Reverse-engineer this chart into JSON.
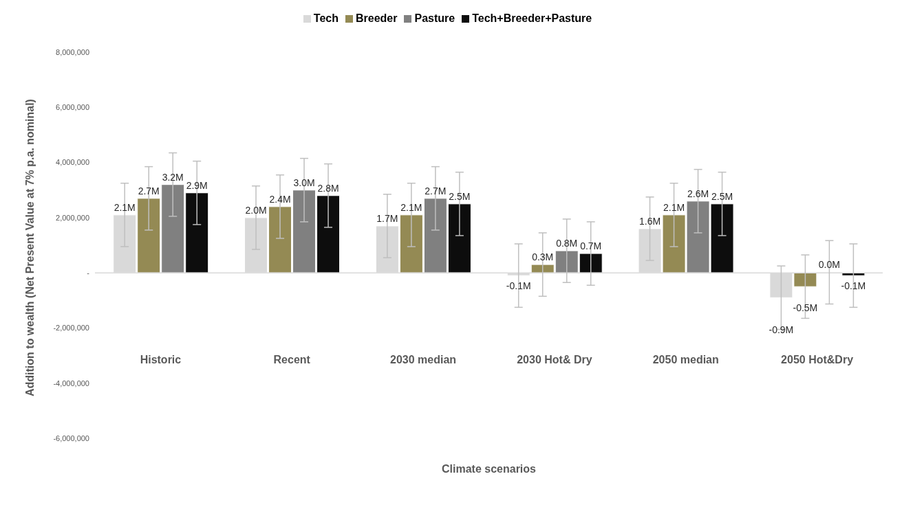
{
  "chart_data": {
    "type": "bar",
    "xlabel": "Climate scenarios",
    "ylabel": "Addition to wealth (Net Present Value at 7% p.a. nominal)",
    "categories": [
      "Historic",
      "Recent",
      "2030 median",
      "2030 Hot& Dry",
      "2050 median",
      "2050 Hot&Dry"
    ],
    "series": [
      {
        "name": "Tech",
        "color": "#d9d9d9",
        "values": [
          2100000,
          2000000,
          1700000,
          -100000,
          1600000,
          -900000
        ],
        "errors": [
          1150000,
          1150000,
          1150000,
          1150000,
          1150000,
          1150000
        ],
        "value_labels": [
          "2.1M",
          "2.0M",
          "1.7M",
          "-0.1M",
          "1.6M",
          "-0.9M"
        ]
      },
      {
        "name": "Breeder",
        "color": "#948a54",
        "values": [
          2700000,
          2400000,
          2100000,
          300000,
          2100000,
          -500000
        ],
        "errors": [
          1150000,
          1150000,
          1150000,
          1150000,
          1150000,
          1150000
        ],
        "value_labels": [
          "2.7M",
          "2.4M",
          "2.1M",
          "0.3M",
          "2.1M",
          "-0.5M"
        ]
      },
      {
        "name": "Pasture",
        "color": "#808080",
        "values": [
          3200000,
          3000000,
          2700000,
          800000,
          2600000,
          20000
        ],
        "errors": [
          1150000,
          1150000,
          1150000,
          1150000,
          1150000,
          1150000
        ],
        "value_labels": [
          "3.2M",
          "3.0M",
          "2.7M",
          "0.8M",
          "2.6M",
          "0.0M"
        ]
      },
      {
        "name": "Tech+Breeder+Pasture",
        "color": "#0d0d0d",
        "values": [
          2900000,
          2800000,
          2500000,
          700000,
          2500000,
          -100000
        ],
        "errors": [
          1150000,
          1150000,
          1150000,
          1150000,
          1150000,
          1150000
        ],
        "value_labels": [
          "2.9M",
          "2.8M",
          "2.5M",
          "0.7M",
          "2.5M",
          "-0.1M"
        ]
      }
    ],
    "ylim": [
      -6000000,
      8000000
    ],
    "yticks": [
      {
        "value": -6000000,
        "label": "-6,000,000"
      },
      {
        "value": -4000000,
        "label": "-4,000,000"
      },
      {
        "value": -2000000,
        "label": "-2,000,000"
      },
      {
        "value": 0,
        "label": "-"
      },
      {
        "value": 2000000,
        "label": "2,000,000"
      },
      {
        "value": 4000000,
        "label": "4,000,000"
      },
      {
        "value": 6000000,
        "label": "6,000,000"
      },
      {
        "value": 8000000,
        "label": "8,000,000"
      }
    ],
    "legend": "top"
  }
}
